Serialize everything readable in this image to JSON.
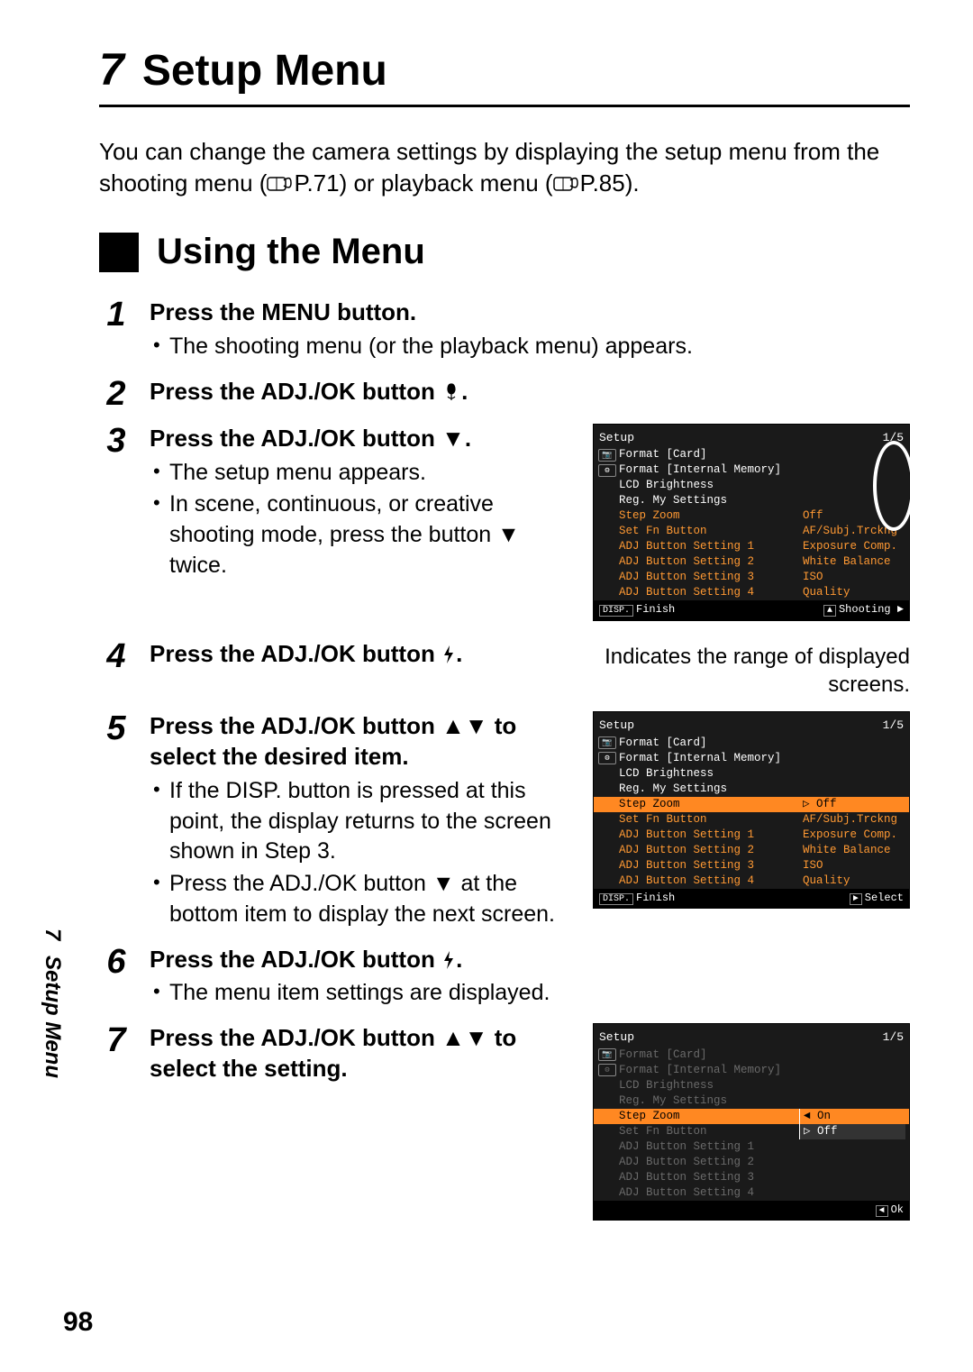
{
  "chapter": {
    "number": "7",
    "title": "Setup Menu"
  },
  "intro": {
    "line1": "You can change the camera settings by displaying the setup menu",
    "line2a": "from the shooting menu (",
    "ref1": "P.71",
    "line2b": ") or playback menu (",
    "ref2": "P.85",
    "line2c": ")."
  },
  "subheading": "Using the Menu",
  "steps": {
    "1": {
      "title": "Press the MENU button.",
      "bullet1": "The shooting menu (or the playback menu) appears."
    },
    "2": {
      "title_a": "Press the ADJ./OK button ",
      "title_b": "."
    },
    "3": {
      "title_a": "Press the ADJ./OK button ",
      "title_b": ".",
      "bullet1": "The setup menu appears.",
      "bullet2a": "In scene, continuous, or creative shooting mode, press the button ",
      "bullet2b": " twice."
    },
    "4": {
      "title_a": "Press the ADJ./OK button ",
      "title_b": "."
    },
    "5": {
      "title_a": "Press the ADJ./OK button ",
      "title_b": " to select the desired item.",
      "bullet1": "If the DISP. button is pressed at this point, the display returns to the screen shown in Step 3.",
      "bullet2a": "Press the ADJ./OK button ",
      "bullet2b": " at the bottom item to display the next screen."
    },
    "6": {
      "title_a": "Press the ADJ./OK button ",
      "title_b": ".",
      "bullet1": "The menu item settings are displayed."
    },
    "7": {
      "title_a": "Press the ADJ./OK button ",
      "title_b": " to select the setting."
    }
  },
  "screen_caption": "Indicates the range of displayed screens.",
  "lcd_common": {
    "title": "Setup",
    "page": "1/5",
    "rows": [
      "Format [Card]",
      "Format [Internal Memory]",
      "LCD Brightness",
      "Reg. My Settings",
      "Step Zoom",
      "Set Fn Button",
      "ADJ Button Setting 1",
      "ADJ Button Setting 2",
      "ADJ Button Setting 3",
      "ADJ Button Setting 4"
    ],
    "vals": [
      "",
      "",
      "",
      "",
      "Off",
      "AF/Subj.Trckng",
      "Exposure Comp.",
      "White Balance",
      "ISO",
      "Quality"
    ]
  },
  "lcd1_foot": {
    "left_label": "DISP.",
    "left_text": "Finish",
    "right_text": "Shooting"
  },
  "lcd2": {
    "foot_left_label": "DISP.",
    "foot_left_text": "Finish",
    "foot_right_text": "Select",
    "sel_val_prefix": "▷",
    "sel_val": "Off"
  },
  "lcd3": {
    "foot_right_text": "Ok",
    "opt1": "On",
    "opt2": "Off",
    "opt2_prefix": "▷"
  },
  "side": {
    "num": "7",
    "title": "Setup Menu"
  },
  "page_number": "98",
  "colors": {
    "lcd_bg": "#1a1a1a",
    "lcd_text": "#ffffff",
    "lcd_accent": "#ff9933",
    "lcd_dim": "#6a6a6a"
  }
}
